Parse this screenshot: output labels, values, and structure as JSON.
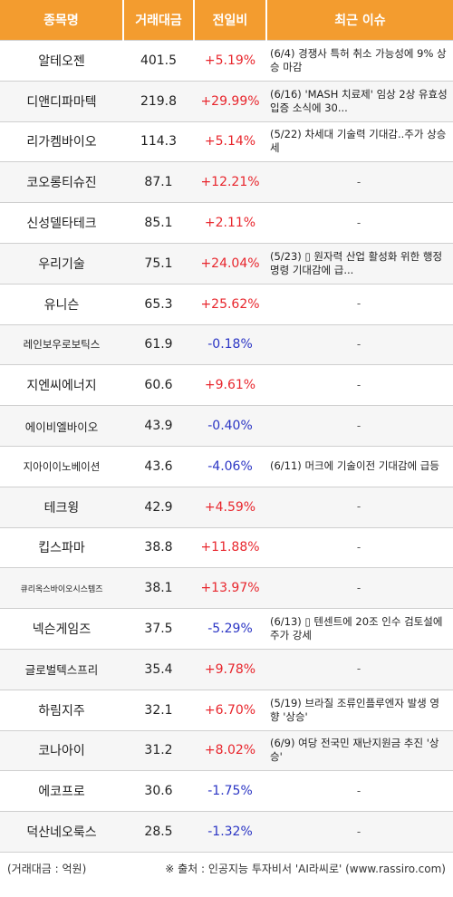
{
  "headers": {
    "name": "종목명",
    "volume": "거래대금",
    "change": "전일비",
    "issue": "최근 이슈"
  },
  "rows": [
    {
      "name": "알테오젠",
      "volume": "401.5",
      "change": "+5.19%",
      "dir": "up",
      "issue": "(6/4) 경쟁사 특허 취소 가능성에 9% 상승 마감"
    },
    {
      "name": "디앤디파마텍",
      "volume": "219.8",
      "change": "+29.99%",
      "dir": "up",
      "issue": "(6/16) 'MASH 치료제' 임상 2상 유효성 입증 소식에 30..."
    },
    {
      "name": "리가켐바이오",
      "volume": "114.3",
      "change": "+5.14%",
      "dir": "up",
      "issue": "(5/22) 차세대 기술력 기대감..주가 상승세"
    },
    {
      "name": "코오롱티슈진",
      "volume": "87.1",
      "change": "+12.21%",
      "dir": "up",
      "issue": "-"
    },
    {
      "name": "신성델타테크",
      "volume": "85.1",
      "change": "+2.11%",
      "dir": "up",
      "issue": "-"
    },
    {
      "name": "우리기술",
      "volume": "75.1",
      "change": "+24.04%",
      "dir": "up",
      "issue": "(5/23) ▯ 원자력 산업 활성화 위한 행정명령 기대감에 급..."
    },
    {
      "name": "유니슨",
      "volume": "65.3",
      "change": "+25.62%",
      "dir": "up",
      "issue": "-"
    },
    {
      "name": "레인보우로보틱스",
      "volume": "61.9",
      "change": "-0.18%",
      "dir": "down",
      "issue": "-"
    },
    {
      "name": "지엔씨에너지",
      "volume": "60.6",
      "change": "+9.61%",
      "dir": "up",
      "issue": "-"
    },
    {
      "name": "에이비엘바이오",
      "volume": "43.9",
      "change": "-0.40%",
      "dir": "down",
      "issue": "-"
    },
    {
      "name": "지아이이노베이션",
      "volume": "43.6",
      "change": "-4.06%",
      "dir": "down",
      "issue": "(6/11) 머크에 기술이전 기대감에 급등"
    },
    {
      "name": "테크윙",
      "volume": "42.9",
      "change": "+4.59%",
      "dir": "up",
      "issue": "-"
    },
    {
      "name": "킵스파마",
      "volume": "38.8",
      "change": "+11.88%",
      "dir": "up",
      "issue": "-"
    },
    {
      "name": "큐리옥스바이오시스템즈",
      "volume": "38.1",
      "change": "+13.97%",
      "dir": "up",
      "issue": "-"
    },
    {
      "name": "넥슨게임즈",
      "volume": "37.5",
      "change": "-5.29%",
      "dir": "down",
      "issue": "(6/13) ▯ 텐센트에 20조 인수 검토설에 주가 강세"
    },
    {
      "name": "글로벌텍스프리",
      "volume": "35.4",
      "change": "+9.78%",
      "dir": "up",
      "issue": "-"
    },
    {
      "name": "하림지주",
      "volume": "32.1",
      "change": "+6.70%",
      "dir": "up",
      "issue": "(5/19) 브라질 조류인플루엔자 발생 영향 '상승'"
    },
    {
      "name": "코나아이",
      "volume": "31.2",
      "change": "+8.02%",
      "dir": "up",
      "issue": "(6/9) 여당 전국민 재난지원금 추진 '상승'"
    },
    {
      "name": "에코프로",
      "volume": "30.6",
      "change": "-1.75%",
      "dir": "down",
      "issue": "-"
    },
    {
      "name": "덕산네오룩스",
      "volume": "28.5",
      "change": "-1.32%",
      "dir": "down",
      "issue": "-"
    }
  ],
  "footer": {
    "unit": "(거래대금 : 억원)",
    "source": "※ 출처 : 인공지능 투자비서 'AI라씨로' (www.rassiro.com)"
  },
  "colors": {
    "header_bg": "#f39c2f",
    "up": "#e8262d",
    "down": "#2b35c4"
  }
}
